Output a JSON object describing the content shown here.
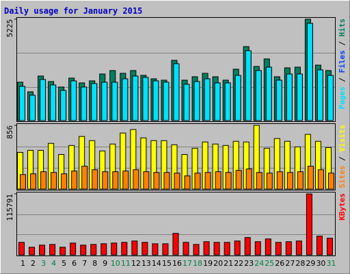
{
  "chart_data": [
    {
      "type": "bar",
      "title": "Daily usage for January 2015",
      "categories": [
        "1",
        "2",
        "3",
        "4",
        "5",
        "6",
        "7",
        "8",
        "9",
        "10",
        "11",
        "12",
        "13",
        "14",
        "15",
        "16",
        "17",
        "18",
        "19",
        "20",
        "21",
        "22",
        "23",
        "24",
        "25",
        "26",
        "27",
        "28",
        "29",
        "30",
        "31"
      ],
      "category_colors": [
        "#000000",
        "#000000",
        "#008040",
        "#008040",
        "#000000",
        "#000000",
        "#000000",
        "#000000",
        "#000000",
        "#008040",
        "#008040",
        "#000000",
        "#000000",
        "#000000",
        "#000000",
        "#000000",
        "#008040",
        "#008040",
        "#000000",
        "#000000",
        "#000000",
        "#000000",
        "#000000",
        "#008040",
        "#008040",
        "#000000",
        "#000000",
        "#000000",
        "#000000",
        "#000000",
        "#008040"
      ],
      "ylim": [
        0,
        5225
      ],
      "yticks": [
        5225
      ],
      "series": [
        {
          "name": "Hits",
          "color": "#008060",
          "values": [
            1977,
            1483,
            2295,
            2012,
            1730,
            2189,
            1942,
            2047,
            2400,
            2577,
            2436,
            2577,
            2330,
            2153,
            2083,
            3106,
            2083,
            2259,
            2436,
            2259,
            2083,
            2648,
            3812,
            2789,
            3177,
            2259,
            2718,
            2753,
            5225,
            2859,
            2577
          ]
        },
        {
          "name": "Files",
          "color": "#0040FF",
          "values": [
            1765,
            1306,
            2118,
            1836,
            1553,
            2047,
            1730,
            1906,
            1977,
            1977,
            2153,
            2295,
            2224,
            2047,
            1977,
            2930,
            1871,
            2012,
            2153,
            1942,
            1942,
            2330,
            3601,
            2577,
            2753,
            2083,
            2400,
            2400,
            5012,
            2612,
            2330
          ]
        },
        {
          "name": "Pages",
          "color": "#00E0FF",
          "values": [
            1765,
            1306,
            2118,
            1836,
            1553,
            2047,
            1730,
            1906,
            1977,
            1977,
            2153,
            2295,
            2224,
            2047,
            1977,
            2930,
            1871,
            2012,
            2153,
            1942,
            1942,
            2330,
            3601,
            2577,
            2753,
            2083,
            2400,
            2400,
            5012,
            2612,
            2330
          ]
        }
      ]
    },
    {
      "type": "bar",
      "ylim": [
        0,
        856
      ],
      "yticks": [
        856
      ],
      "series": [
        {
          "name": "Visits",
          "color": "#FFFF00",
          "values": [
            493,
            521,
            521,
            614,
            465,
            586,
            707,
            651,
            512,
            605,
            753,
            800,
            688,
            651,
            651,
            595,
            465,
            549,
            633,
            605,
            586,
            642,
            633,
            856,
            549,
            679,
            642,
            567,
            735,
            642,
            558
          ]
        },
        {
          "name": "Sites",
          "color": "#FF8000",
          "values": [
            195,
            205,
            233,
            223,
            205,
            242,
            307,
            260,
            233,
            233,
            242,
            260,
            233,
            223,
            223,
            214,
            177,
            214,
            223,
            233,
            223,
            251,
            270,
            223,
            214,
            233,
            223,
            233,
            307,
            260,
            214
          ]
        }
      ]
    },
    {
      "type": "bar",
      "ylim": [
        0,
        115791
      ],
      "yticks": [
        115791
      ],
      "series": [
        {
          "name": "KBytes",
          "color": "#FF0000",
          "values": [
            23688,
            14476,
            18424,
            19740,
            14476,
            22372,
            18424,
            19740,
            21056,
            22372,
            23688,
            26320,
            23688,
            21056,
            21056,
            40796,
            23688,
            19740,
            25004,
            23688,
            23688,
            26320,
            32900,
            25004,
            30268,
            23688,
            25004,
            26320,
            115791,
            35532,
            31584
          ]
        }
      ]
    }
  ]
}
